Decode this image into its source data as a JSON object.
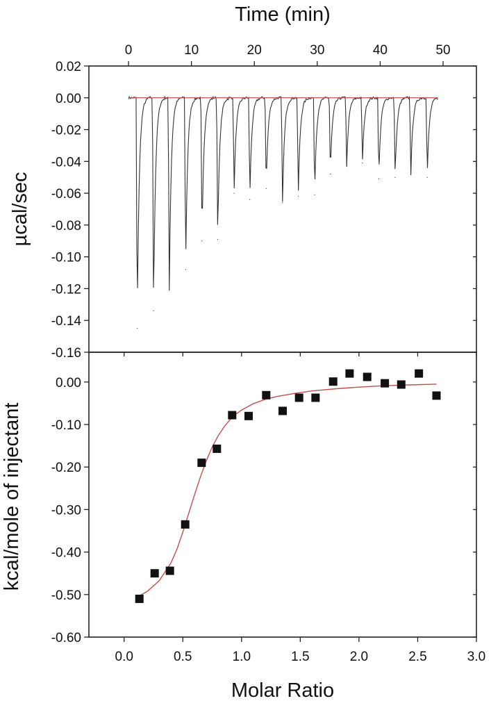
{
  "chart_data": [
    {
      "type": "line",
      "panel": "top",
      "xlabel": "Time (min)",
      "ylabel": "µcal/sec",
      "xlim": [
        -6.3,
        55.3
      ],
      "ylim": [
        -0.16,
        0.02
      ],
      "x_ticks": [
        0,
        10,
        20,
        30,
        40,
        50
      ],
      "x_tick_labels": [
        "0",
        "10",
        "20",
        "30",
        "40",
        "50"
      ],
      "y_ticks": [
        0.02,
        0.0,
        -0.02,
        -0.04,
        -0.06,
        -0.08,
        -0.1,
        -0.12,
        -0.14,
        -0.16
      ],
      "y_tick_labels": [
        "0.02",
        "0.00",
        "-0.02",
        "-0.04",
        "-0.06",
        "-0.08",
        "-0.10",
        "-0.12",
        "-0.14",
        "-0.16"
      ],
      "x_axis_position": "top",
      "grid": false,
      "series": [
        {
          "role": "raw heat trace",
          "color": "#333333",
          "x_start": 0,
          "x_end": 49.2,
          "baseline": 0.0,
          "injection_times": [
            1.2,
            3.8,
            6.3,
            8.9,
            11.5,
            14.0,
            16.6,
            19.1,
            21.7,
            24.3,
            26.8,
            29.4,
            31.9,
            34.5,
            37.0,
            39.6,
            42.2,
            44.7,
            47.3
          ],
          "peak_minima": [
            -0.145,
            -0.134,
            -0.121,
            -0.108,
            -0.09,
            -0.089,
            -0.06,
            -0.064,
            -0.057,
            -0.066,
            -0.062,
            -0.061,
            -0.048,
            -0.043,
            -0.041,
            -0.051,
            -0.05,
            -0.048,
            -0.05
          ]
        },
        {
          "role": "baseline",
          "color": "#c0504d",
          "x": [
            0,
            49.2
          ],
          "y": [
            0.0,
            0.0
          ]
        }
      ]
    },
    {
      "type": "scatter",
      "panel": "bottom",
      "xlabel": "Molar Ratio",
      "ylabel": "kcal/mole of injectant",
      "xlim": [
        -0.3,
        3.0
      ],
      "ylim": [
        -0.6,
        0.07
      ],
      "x_ticks": [
        0.0,
        0.5,
        1.0,
        1.5,
        2.0,
        2.5,
        3.0
      ],
      "x_tick_labels": [
        "0.0",
        "0.5",
        "1.0",
        "1.5",
        "2.0",
        "2.5",
        "3.0"
      ],
      "y_ticks": [
        0.0,
        -0.1,
        -0.2,
        -0.3,
        -0.4,
        -0.5,
        -0.6
      ],
      "y_tick_labels": [
        "0.00",
        "-0.10",
        "-0.20",
        "-0.30",
        "-0.40",
        "-0.50",
        "-0.60"
      ],
      "grid": false,
      "series": [
        {
          "role": "integrated heats",
          "marker": "square",
          "color": "#111111",
          "x": [
            0.13,
            0.26,
            0.39,
            0.52,
            0.66,
            0.79,
            0.92,
            1.06,
            1.21,
            1.35,
            1.49,
            1.63,
            1.78,
            1.92,
            2.07,
            2.22,
            2.36,
            2.51,
            2.66
          ],
          "y": [
            -0.51,
            -0.45,
            -0.444,
            -0.335,
            -0.19,
            -0.157,
            -0.078,
            -0.08,
            -0.031,
            -0.068,
            -0.037,
            -0.037,
            0.001,
            0.02,
            0.012,
            -0.003,
            -0.006,
            0.02,
            -0.032
          ]
        },
        {
          "role": "fit curve",
          "color": "#c0504d",
          "x": [
            0.13,
            0.2,
            0.3,
            0.4,
            0.45,
            0.5,
            0.55,
            0.6,
            0.65,
            0.7,
            0.75,
            0.8,
            0.85,
            0.9,
            0.95,
            1.0,
            1.1,
            1.2,
            1.3,
            1.45,
            1.6,
            1.8,
            2.0,
            2.2,
            2.4,
            2.66
          ],
          "y": [
            -0.503,
            -0.492,
            -0.467,
            -0.425,
            -0.393,
            -0.353,
            -0.309,
            -0.265,
            -0.223,
            -0.185,
            -0.153,
            -0.127,
            -0.106,
            -0.089,
            -0.076,
            -0.066,
            -0.051,
            -0.041,
            -0.034,
            -0.027,
            -0.021,
            -0.016,
            -0.012,
            -0.009,
            -0.007,
            -0.005
          ]
        }
      ]
    }
  ]
}
